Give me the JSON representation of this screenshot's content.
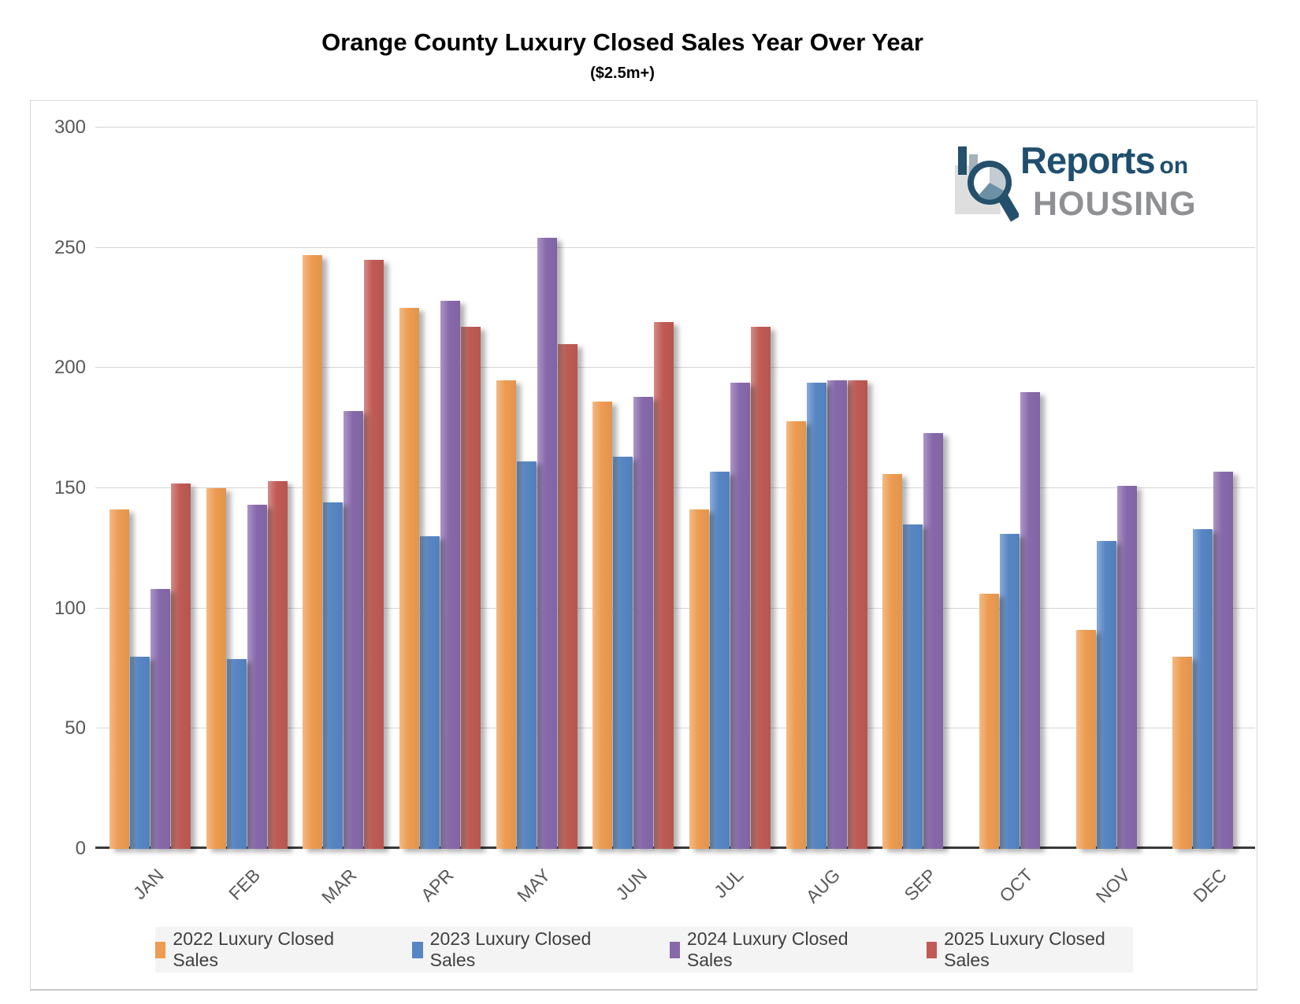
{
  "logo": {
    "line1": "Reports",
    "line1_suffix": "on",
    "line2": "HOUSING",
    "navy": "#1f4f6e",
    "gray": "#8e9093"
  },
  "axis": {
    "yticks": [
      0,
      50,
      100,
      150,
      200,
      250,
      300
    ]
  },
  "chart_data": {
    "type": "bar",
    "title": "Orange County Luxury Closed Sales Year Over Year",
    "subtitle": "($2.5m+)",
    "categories": [
      "JAN",
      "FEB",
      "MAR",
      "APR",
      "MAY",
      "JUN",
      "JUL",
      "AUG",
      "SEP",
      "OCT",
      "NOV",
      "DEC"
    ],
    "series": [
      {
        "name": "2022 Luxury Closed Sales",
        "color": "#ED9C51",
        "values": [
          141,
          150,
          247,
          225,
          195,
          186,
          141,
          178,
          156,
          106,
          91,
          80
        ]
      },
      {
        "name": "2023 Luxury Closed Sales",
        "color": "#5786C4",
        "values": [
          80,
          79,
          144,
          130,
          161,
          163,
          157,
          194,
          135,
          131,
          128,
          133
        ]
      },
      {
        "name": "2024 Luxury Closed Sales",
        "color": "#8769AB",
        "values": [
          108,
          143,
          182,
          228,
          254,
          188,
          194,
          195,
          173,
          190,
          151,
          157
        ]
      },
      {
        "name": "2025 Luxury Closed Sales",
        "color": "#C05A54",
        "values": [
          152,
          153,
          245,
          217,
          210,
          219,
          217,
          195,
          null,
          null,
          null,
          null
        ]
      }
    ],
    "ylim": [
      0,
      300
    ],
    "ytick_interval": 50,
    "grid": true,
    "legend_position": "bottom",
    "xlabel": "",
    "ylabel": ""
  }
}
